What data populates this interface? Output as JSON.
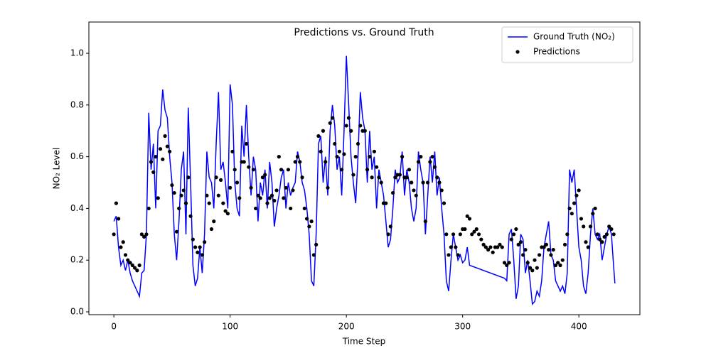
{
  "chart_data": {
    "type": "line",
    "title": "Predictions vs. Ground Truth",
    "xlabel": "Time Step",
    "ylabel": "NO₂ Level",
    "xlim": [
      -21.5,
      452.5
    ],
    "ylim": [
      -0.011,
      1.121
    ],
    "xticks": [
      0,
      100,
      200,
      300,
      400
    ],
    "yticks": [
      {
        "value": 0,
        "label": "0.0"
      },
      0.2,
      0.4,
      0.6,
      0.8,
      {
        "value": 1,
        "label": "1.0"
      }
    ],
    "legend": "upper right",
    "series": [
      {
        "name": "Ground Truth (NO₂)",
        "color": "#0000ff",
        "type": "line",
        "x": [
          0,
          2,
          4,
          6,
          8,
          10,
          12,
          14,
          16,
          18,
          20,
          22,
          24,
          26,
          28,
          30,
          32,
          34,
          36,
          38,
          40,
          42,
          44,
          46,
          48,
          50,
          52,
          54,
          56,
          58,
          60,
          62,
          64,
          66,
          68,
          70,
          72,
          74,
          76,
          78,
          80,
          82,
          84,
          86,
          88,
          90,
          92,
          94,
          96,
          98,
          100,
          102,
          104,
          106,
          108,
          110,
          112,
          114,
          116,
          118,
          120,
          122,
          124,
          126,
          128,
          130,
          132,
          134,
          136,
          138,
          140,
          142,
          144,
          146,
          148,
          150,
          152,
          154,
          156,
          158,
          160,
          162,
          164,
          166,
          168,
          170,
          172,
          174,
          176,
          178,
          180,
          182,
          184,
          186,
          188,
          190,
          192,
          194,
          196,
          198,
          200,
          202,
          204,
          206,
          208,
          210,
          212,
          214,
          216,
          218,
          220,
          222,
          224,
          226,
          228,
          230,
          232,
          234,
          236,
          238,
          240,
          242,
          244,
          246,
          248,
          250,
          252,
          254,
          256,
          258,
          260,
          262,
          264,
          266,
          268,
          270,
          272,
          274,
          276,
          278,
          280,
          282,
          284,
          286,
          288,
          290,
          292,
          294,
          296,
          298,
          300,
          302,
          304,
          306,
          336,
          338,
          340,
          342,
          344,
          346,
          348,
          350,
          352,
          354,
          356,
          358,
          360,
          362,
          364,
          366,
          368,
          370,
          372,
          374,
          376,
          378,
          380,
          382,
          384,
          386,
          388,
          390,
          392,
          394,
          396,
          398,
          400,
          402,
          404,
          406,
          408,
          410,
          412,
          414,
          416,
          418,
          420,
          422,
          424,
          426,
          428,
          430,
          431
        ],
        "values": [
          0.35,
          0.37,
          0.25,
          0.18,
          0.2,
          0.16,
          0.2,
          0.15,
          0.12,
          0.1,
          0.08,
          0.06,
          0.15,
          0.16,
          0.3,
          0.77,
          0.55,
          0.65,
          0.4,
          0.7,
          0.72,
          0.86,
          0.78,
          0.75,
          0.6,
          0.5,
          0.3,
          0.2,
          0.35,
          0.55,
          0.62,
          0.3,
          0.79,
          0.5,
          0.18,
          0.1,
          0.13,
          0.25,
          0.15,
          0.3,
          0.62,
          0.52,
          0.5,
          0.4,
          0.65,
          0.85,
          0.55,
          0.58,
          0.5,
          0.4,
          0.88,
          0.8,
          0.5,
          0.4,
          0.37,
          0.72,
          0.6,
          0.8,
          0.6,
          0.45,
          0.6,
          0.55,
          0.35,
          0.5,
          0.45,
          0.55,
          0.4,
          0.58,
          0.5,
          0.33,
          0.4,
          0.45,
          0.52,
          0.55,
          0.4,
          0.5,
          0.45,
          0.48,
          0.5,
          0.62,
          0.58,
          0.5,
          0.47,
          0.4,
          0.3,
          0.12,
          0.1,
          0.3,
          0.65,
          0.68,
          0.5,
          0.6,
          0.45,
          0.7,
          0.8,
          0.72,
          0.55,
          0.6,
          0.45,
          0.7,
          0.99,
          0.8,
          0.6,
          0.5,
          0.42,
          0.6,
          0.85,
          0.75,
          0.7,
          0.5,
          0.7,
          0.55,
          0.6,
          0.4,
          0.55,
          0.5,
          0.45,
          0.35,
          0.25,
          0.28,
          0.4,
          0.55,
          0.5,
          0.52,
          0.62,
          0.45,
          0.55,
          0.5,
          0.4,
          0.35,
          0.4,
          0.62,
          0.55,
          0.5,
          0.3,
          0.45,
          0.6,
          0.5,
          0.62,
          0.45,
          0.52,
          0.4,
          0.3,
          0.12,
          0.08,
          0.2,
          0.3,
          0.25,
          0.2,
          0.22,
          0.19,
          0.2,
          0.25,
          0.18,
          0.13,
          0.12,
          0.3,
          0.32,
          0.2,
          0.05,
          0.1,
          0.3,
          0.28,
          0.15,
          0.2,
          0.12,
          0.03,
          0.04,
          0.08,
          0.06,
          0.12,
          0.25,
          0.3,
          0.35,
          0.22,
          0.2,
          0.12,
          0.1,
          0.08,
          0.1,
          0.07,
          0.15,
          0.55,
          0.5,
          0.55,
          0.4,
          0.25,
          0.2,
          0.1,
          0.07,
          0.15,
          0.3,
          0.4,
          0.3,
          0.28,
          0.3,
          0.2,
          0.25,
          0.3,
          0.33,
          0.3,
          0.17,
          0.11
        ]
      },
      {
        "name": "Predictions",
        "color": "#000000",
        "type": "scatter",
        "x": [
          0,
          2,
          4,
          6,
          8,
          10,
          12,
          14,
          16,
          18,
          20,
          22,
          24,
          26,
          28,
          30,
          32,
          34,
          36,
          38,
          40,
          42,
          44,
          46,
          48,
          50,
          52,
          54,
          56,
          58,
          60,
          62,
          64,
          66,
          68,
          70,
          72,
          74,
          76,
          78,
          80,
          82,
          84,
          86,
          88,
          90,
          92,
          94,
          96,
          98,
          100,
          102,
          104,
          106,
          108,
          110,
          112,
          114,
          116,
          118,
          120,
          122,
          124,
          126,
          128,
          130,
          132,
          134,
          136,
          138,
          140,
          142,
          144,
          146,
          148,
          150,
          152,
          154,
          156,
          158,
          160,
          162,
          164,
          166,
          168,
          170,
          172,
          174,
          176,
          178,
          180,
          182,
          184,
          186,
          188,
          190,
          192,
          194,
          196,
          198,
          200,
          202,
          204,
          206,
          208,
          210,
          212,
          214,
          216,
          218,
          220,
          222,
          224,
          226,
          228,
          230,
          232,
          234,
          236,
          238,
          240,
          242,
          244,
          246,
          248,
          250,
          252,
          254,
          256,
          258,
          260,
          262,
          264,
          266,
          268,
          270,
          272,
          274,
          276,
          278,
          280,
          282,
          284,
          286,
          288,
          290,
          292,
          294,
          296,
          298,
          300,
          302,
          304,
          306,
          308,
          310,
          312,
          314,
          316,
          318,
          320,
          322,
          324,
          326,
          328,
          330,
          332,
          334,
          336,
          338,
          340,
          342,
          344,
          346,
          348,
          350,
          352,
          354,
          356,
          358,
          360,
          362,
          364,
          366,
          368,
          370,
          372,
          374,
          376,
          378,
          380,
          382,
          384,
          386,
          388,
          390,
          392,
          394,
          396,
          398,
          400,
          402,
          404,
          406,
          408,
          410,
          412,
          414,
          416,
          418,
          420,
          422,
          424,
          426,
          428,
          430
        ],
        "values": [
          0.3,
          0.42,
          0.36,
          0.25,
          0.27,
          0.22,
          0.2,
          0.19,
          0.18,
          0.17,
          0.16,
          0.18,
          0.3,
          0.29,
          0.3,
          0.4,
          0.58,
          0.54,
          0.6,
          0.44,
          0.63,
          0.59,
          0.68,
          0.64,
          0.62,
          0.49,
          0.46,
          0.31,
          0.4,
          0.45,
          0.47,
          0.42,
          0.52,
          0.37,
          0.28,
          0.25,
          0.23,
          0.25,
          0.22,
          0.27,
          0.45,
          0.42,
          0.32,
          0.35,
          0.52,
          0.45,
          0.51,
          0.42,
          0.39,
          0.38,
          0.48,
          0.62,
          0.55,
          0.5,
          0.44,
          0.58,
          0.58,
          0.65,
          0.56,
          0.48,
          0.55,
          0.4,
          0.45,
          0.44,
          0.52,
          0.53,
          0.42,
          0.44,
          0.45,
          0.43,
          0.47,
          0.6,
          0.55,
          0.44,
          0.48,
          0.55,
          0.4,
          0.47,
          0.58,
          0.6,
          0.58,
          0.52,
          0.4,
          0.36,
          0.33,
          0.35,
          0.22,
          0.26,
          0.68,
          0.62,
          0.7,
          0.58,
          0.48,
          0.73,
          0.75,
          0.65,
          0.6,
          0.62,
          0.55,
          0.61,
          0.72,
          0.75,
          0.7,
          0.53,
          0.6,
          0.65,
          0.72,
          0.7,
          0.7,
          0.55,
          0.6,
          0.52,
          0.62,
          0.56,
          0.52,
          0.5,
          0.42,
          0.42,
          0.3,
          0.33,
          0.46,
          0.52,
          0.53,
          0.53,
          0.6,
          0.52,
          0.52,
          0.55,
          0.5,
          0.47,
          0.45,
          0.58,
          0.6,
          0.5,
          0.35,
          0.5,
          0.58,
          0.6,
          0.56,
          0.52,
          0.5,
          0.47,
          0.42,
          0.3,
          0.22,
          0.25,
          0.3,
          0.25,
          0.22,
          0.3,
          0.32,
          0.32,
          0.37,
          0.36,
          0.3,
          0.31,
          0.32,
          0.3,
          0.28,
          0.26,
          0.25,
          0.24,
          0.25,
          0.23,
          0.25,
          0.25,
          0.26,
          0.25,
          0.19,
          0.18,
          0.19,
          0.28,
          0.3,
          0.32,
          0.26,
          0.27,
          0.22,
          0.24,
          0.19,
          0.17,
          0.16,
          0.2,
          0.17,
          0.22,
          0.25,
          0.25,
          0.26,
          0.24,
          0.22,
          0.24,
          0.18,
          0.19,
          0.18,
          0.2,
          0.26,
          0.3,
          0.4,
          0.38,
          0.42,
          0.45,
          0.47,
          0.36,
          0.33,
          0.27,
          0.25,
          0.33,
          0.38,
          0.4,
          0.3,
          0.28,
          0.27,
          0.29,
          0.3,
          0.33,
          0.32,
          0.3
        ]
      }
    ]
  }
}
